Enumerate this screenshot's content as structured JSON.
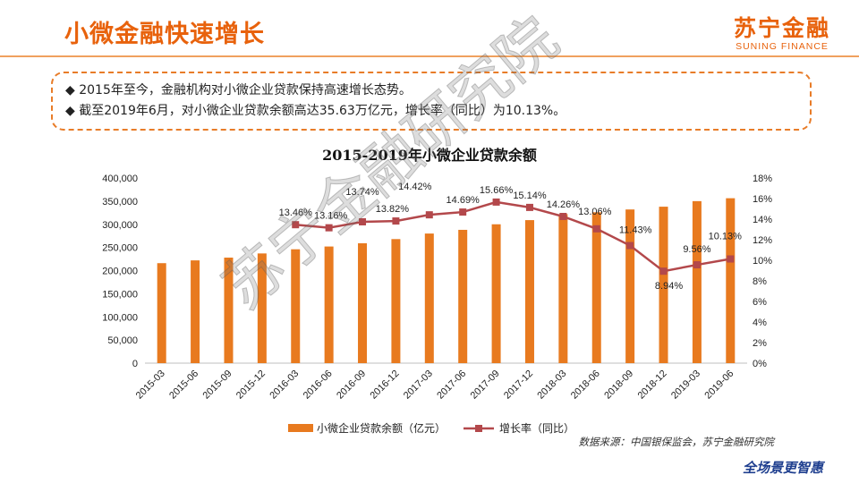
{
  "header": {
    "title": "小微金融快速增长",
    "logo_cn": "苏宁金融",
    "logo_en": "SUNING FINANCE"
  },
  "bullets": [
    "◆ 2015年至今，金融机构对小微企业贷款保持高速增长态势。",
    "◆ 截至2019年6月，对小微企业贷款余额高达35.63万亿元，增长率（同比）为10.13%。"
  ],
  "footer": {
    "source": "数据来源：中国银保监会，苏宁金融研究院",
    "brand": "全场景更智惠"
  },
  "watermark": "苏宁金融研究院",
  "colors": {
    "accent": "#e8620c",
    "bar": "#e87a1f",
    "line": "#b3484b"
  },
  "chart_data": {
    "type": "bar",
    "title": "2015-2019年小微企业贷款余额",
    "categories": [
      "2015-03",
      "2015-06",
      "2015-09",
      "2015-12",
      "2016-03",
      "2016-06",
      "2016-09",
      "2016-12",
      "2017-03",
      "2017-06",
      "2017-09",
      "2017-12",
      "2018-03",
      "2018-06",
      "2018-09",
      "2018-12",
      "2019-03",
      "2019-06"
    ],
    "series": [
      {
        "name": "小微企业贷款余额（亿元）",
        "type": "bar",
        "axis": "left",
        "values": [
          216000,
          222000,
          228000,
          237000,
          246000,
          252000,
          259000,
          268000,
          280000,
          288000,
          300000,
          309000,
          322000,
          326000,
          332000,
          338000,
          350000,
          356300
        ]
      },
      {
        "name": "增长率（同比）",
        "type": "line",
        "axis": "right",
        "values": [
          null,
          null,
          null,
          null,
          13.46,
          13.16,
          13.74,
          13.82,
          14.42,
          14.69,
          15.66,
          15.14,
          14.26,
          13.06,
          11.43,
          8.94,
          9.56,
          10.13
        ],
        "labels": [
          null,
          null,
          null,
          null,
          "13.46%",
          "13.16%",
          "13.74%",
          "13.82%",
          "14.42%",
          "14.69%",
          "15.66%",
          "15.14%",
          "14.26%",
          "13.06%",
          "11.43%",
          "8.94%",
          "9.56%",
          "10.13%"
        ]
      }
    ],
    "y_left": {
      "min": 0,
      "max": 400000,
      "ticks": [
        "0",
        "50,000",
        "100,000",
        "150,000",
        "200,000",
        "250,000",
        "300,000",
        "350,000",
        "400,000"
      ]
    },
    "y_right": {
      "min": 0,
      "max": 18,
      "ticks": [
        "0%",
        "2%",
        "4%",
        "6%",
        "8%",
        "10%",
        "12%",
        "14%",
        "16%",
        "18%"
      ]
    },
    "legend_position": "bottom",
    "grid": false
  }
}
